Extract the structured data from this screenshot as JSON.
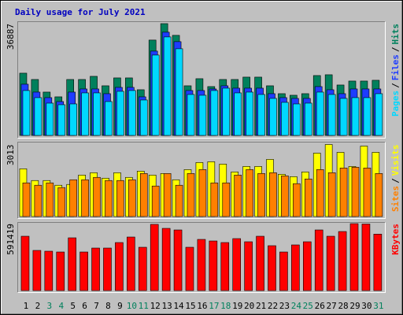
{
  "header": {
    "title": "Daily usage for July 2021"
  },
  "chart_data": [
    {
      "type": "bar",
      "ylim": [
        0,
        36887
      ],
      "yticks": [
        36887
      ],
      "legend_separator": "/",
      "series": [
        {
          "name": "Hits",
          "color": "#00805c",
          "values": [
            20540,
            18460,
            14300,
            12740,
            18460,
            18460,
            19500,
            16380,
            18980,
            18980,
            15080,
            31460,
            36887,
            33020,
            16380,
            18720,
            16120,
            18460,
            18460,
            19240,
            19240,
            16380,
            13780,
            13260,
            13780,
            19760,
            20020,
            16640,
            17940,
            17940,
            18200
          ]
        },
        {
          "name": "Files",
          "color": "#1e3cff",
          "values": [
            16900,
            14300,
            12480,
            11180,
            14300,
            15340,
            15340,
            13780,
            15860,
            15860,
            12740,
            27820,
            34060,
            30940,
            14820,
            14820,
            15340,
            16380,
            15600,
            15600,
            15600,
            13780,
            12480,
            12220,
            12220,
            16120,
            15080,
            13780,
            15340,
            15340,
            15340
          ]
        },
        {
          "name": "Pages",
          "color": "#00d8ff",
          "values": [
            14820,
            12480,
            10660,
            10140,
            10400,
            14040,
            14040,
            11180,
            14560,
            14820,
            11700,
            26520,
            32500,
            28600,
            13520,
            13260,
            14820,
            15600,
            14040,
            14300,
            13520,
            12220,
            10920,
            10400,
            10660,
            14300,
            13520,
            12220,
            12480,
            12480,
            13780
          ]
        }
      ]
    },
    {
      "type": "bar",
      "ylim": [
        0,
        3013
      ],
      "yticks": [
        3013
      ],
      "legend_separator": "/",
      "series": [
        {
          "name": "Visits",
          "color": "#ffff00",
          "values": [
            1998,
            1507,
            1507,
            1310,
            1343,
            1736,
            1834,
            1605,
            1834,
            1638,
            1900,
            1736,
            1801,
            1539,
            1965,
            2260,
            2293,
            2194,
            1867,
            2096,
            2096,
            2391,
            1769,
            1670,
            1867,
            2653,
            3013,
            2686,
            2096,
            2948,
            2686
          ]
        },
        {
          "name": "Sites",
          "color": "#ff8000",
          "values": [
            1408,
            1310,
            1408,
            1212,
            1539,
            1539,
            1638,
            1507,
            1507,
            1539,
            1801,
            1277,
            1801,
            1310,
            1801,
            1965,
            1408,
            1408,
            1736,
            1965,
            1801,
            1834,
            1703,
            1376,
            1572,
            1965,
            1834,
            2031,
            2063,
            2031,
            1801
          ]
        }
      ]
    },
    {
      "type": "bar",
      "ylim": [
        0,
        591419
      ],
      "yticks": [
        591419
      ],
      "categories": [
        "1",
        "2",
        "3",
        "4",
        "5",
        "6",
        "7",
        "8",
        "9",
        "10",
        "11",
        "12",
        "13",
        "14",
        "15",
        "16",
        "17",
        "18",
        "19",
        "20",
        "21",
        "22",
        "23",
        "24",
        "25",
        "26",
        "27",
        "28",
        "29",
        "30",
        "31"
      ],
      "category_colors": [
        "#000000",
        "#000000",
        "#00805c",
        "#00805c",
        "#000000",
        "#000000",
        "#000000",
        "#000000",
        "#000000",
        "#00805c",
        "#00805c",
        "#000000",
        "#000000",
        "#000000",
        "#000000",
        "#000000",
        "#00805c",
        "#00805c",
        "#000000",
        "#000000",
        "#000000",
        "#000000",
        "#000000",
        "#00805c",
        "#00805c",
        "#000000",
        "#000000",
        "#000000",
        "#000000",
        "#000000",
        "#00805c"
      ],
      "series": [
        {
          "name": "KBytes",
          "color": "#ff0000",
          "values": [
            480100,
            354860,
            347900,
            340940,
            466190,
            340940,
            375730,
            375730,
            424440,
            473140,
            382690,
            585000,
            549680,
            535770,
            382690,
            452270,
            438350,
            424440,
            459230,
            431400,
            480100,
            396610,
            340940,
            403560,
            431400,
            535770,
            480100,
            521850,
            591419,
            588000,
            499000
          ]
        }
      ]
    }
  ]
}
